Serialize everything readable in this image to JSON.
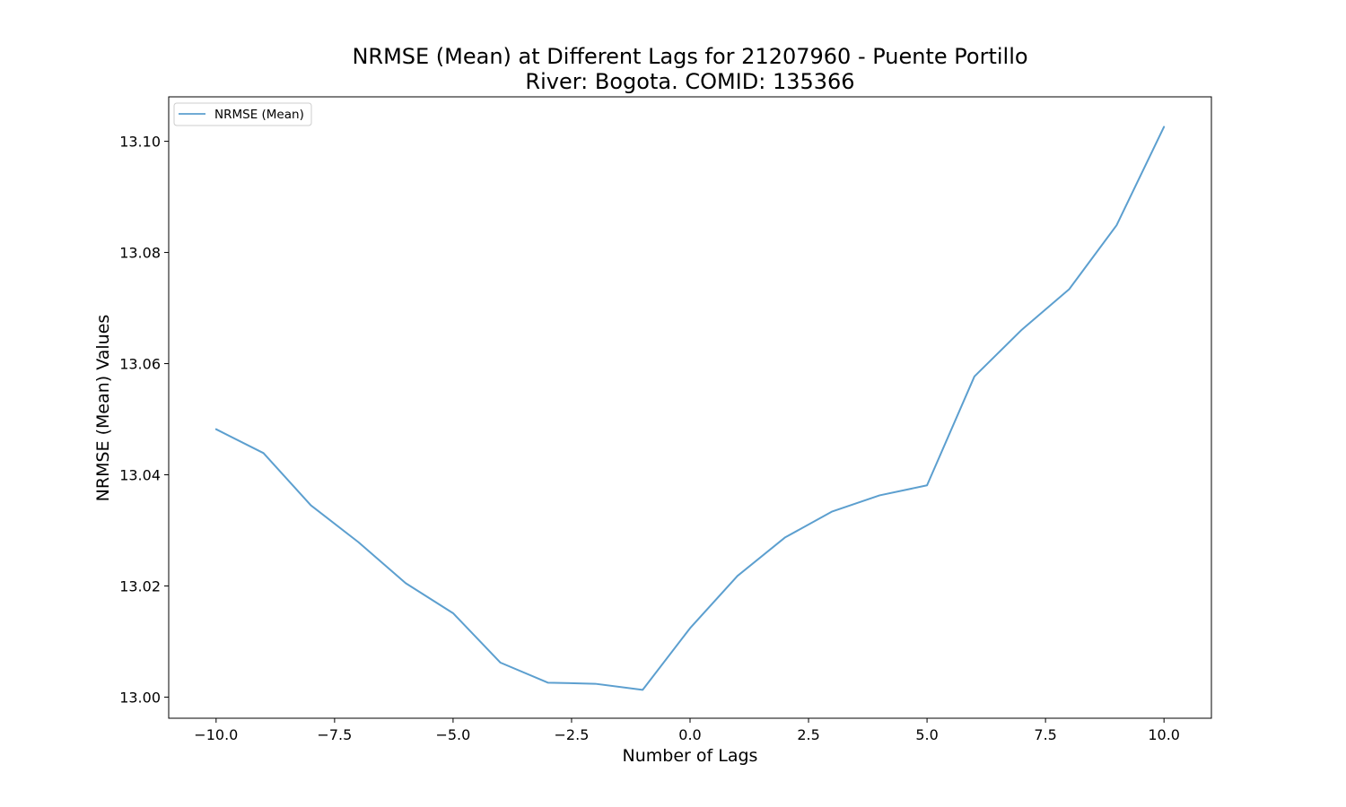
{
  "chart_data": {
    "type": "line",
    "title": "NRMSE (Mean) at Different Lags for 21207960 - Puente Portillo",
    "subtitle": "River: Bogota. COMID: 135366",
    "xlabel": "Number of Lags",
    "ylabel": "NRMSE (Mean) Values",
    "xlim": [
      -11,
      11
    ],
    "ylim": [
      12.9962,
      13.108
    ],
    "x_ticks": [
      -10.0,
      -7.5,
      -5.0,
      -2.5,
      0.0,
      2.5,
      5.0,
      7.5,
      10.0
    ],
    "x_tick_labels": [
      "−10.0",
      "−7.5",
      "−5.0",
      "−2.5",
      "0.0",
      "2.5",
      "5.0",
      "7.5",
      "10.0"
    ],
    "y_ticks": [
      13.0,
      13.02,
      13.04,
      13.06,
      13.08,
      13.1
    ],
    "y_tick_labels": [
      "13.00",
      "13.02",
      "13.04",
      "13.06",
      "13.08",
      "13.10"
    ],
    "grid": false,
    "legend_position": "top-left",
    "series": [
      {
        "name": "NRMSE (Mean)",
        "color": "#5c9fcf",
        "x": [
          -10,
          -9,
          -8,
          -7,
          -6,
          -5,
          -4,
          -3,
          -2,
          -1,
          0,
          1,
          2,
          3,
          4,
          5,
          6,
          7,
          8,
          9,
          10
        ],
        "values": [
          13.0482,
          13.0439,
          13.0345,
          13.0279,
          13.0205,
          13.0151,
          13.0062,
          13.0026,
          13.0024,
          13.0013,
          13.0124,
          13.0218,
          13.0287,
          13.0334,
          13.0363,
          13.0381,
          13.0577,
          13.0661,
          13.0734,
          13.0849,
          13.1026
        ]
      }
    ]
  }
}
